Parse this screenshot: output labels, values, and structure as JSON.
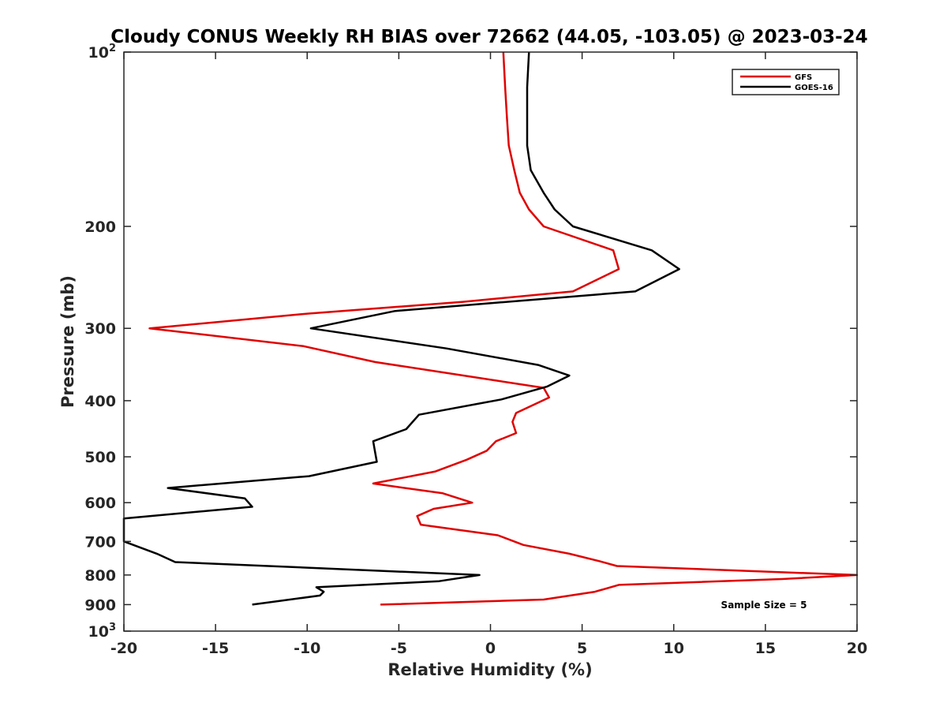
{
  "chart_data": {
    "type": "line",
    "title": "Cloudy CONUS Weekly RH BIAS over 72662 (44.05, -103.05) @ 2023-03-24",
    "xlabel": "Relative Humidity (%)",
    "ylabel": "Pressure (mb)",
    "xlim": [
      -20,
      20
    ],
    "ylim": [
      100,
      1000
    ],
    "y_scale": "log",
    "y_reversed": true,
    "grid": false,
    "legend_position": "top-right",
    "annotation": "Sample Size = 5",
    "x_ticks": [
      {
        "value": -20,
        "label": "-20"
      },
      {
        "value": -15,
        "label": "-15"
      },
      {
        "value": -10,
        "label": "-10"
      },
      {
        "value": -5,
        "label": "-5"
      },
      {
        "value": 0,
        "label": "0"
      },
      {
        "value": 5,
        "label": "5"
      },
      {
        "value": 10,
        "label": "10"
      },
      {
        "value": 15,
        "label": "15"
      },
      {
        "value": 20,
        "label": "20"
      }
    ],
    "y_ticks": [
      {
        "value": 100,
        "base": "10",
        "exp": "2"
      },
      {
        "value": 200,
        "label": "200"
      },
      {
        "value": 300,
        "label": "300"
      },
      {
        "value": 400,
        "label": "400"
      },
      {
        "value": 500,
        "label": "500"
      },
      {
        "value": 600,
        "label": "600"
      },
      {
        "value": 700,
        "label": "700"
      },
      {
        "value": 800,
        "label": "800"
      },
      {
        "value": 900,
        "label": "900"
      },
      {
        "value": 1000,
        "base": "10",
        "exp": "3"
      }
    ],
    "series": [
      {
        "name": "GFS",
        "color": "#e00000",
        "points": [
          [
            0.7,
            100
          ],
          [
            0.8,
            115
          ],
          [
            0.9,
            130
          ],
          [
            1.0,
            145
          ],
          [
            1.3,
            160
          ],
          [
            1.6,
            175
          ],
          [
            2.1,
            187
          ],
          [
            2.9,
            200
          ],
          [
            6.7,
            220
          ],
          [
            7.0,
            237
          ],
          [
            4.5,
            259
          ],
          [
            -1.5,
            270
          ],
          [
            -10.0,
            283
          ],
          [
            -18.6,
            300
          ],
          [
            -10.2,
            322
          ],
          [
            -6.3,
            343
          ],
          [
            -1.2,
            363
          ],
          [
            2.9,
            380
          ],
          [
            3.2,
            395
          ],
          [
            1.4,
            420
          ],
          [
            1.2,
            435
          ],
          [
            1.4,
            455
          ],
          [
            0.3,
            470
          ],
          [
            -0.2,
            488
          ],
          [
            -1.3,
            506
          ],
          [
            -3.0,
            530
          ],
          [
            -6.4,
            556
          ],
          [
            -2.6,
            578
          ],
          [
            -1.0,
            600
          ],
          [
            -3.1,
            615
          ],
          [
            -4.0,
            633
          ],
          [
            -3.8,
            655
          ],
          [
            0.4,
            683
          ],
          [
            1.8,
            710
          ],
          [
            4.3,
            735
          ],
          [
            6.0,
            758
          ],
          [
            6.9,
            772
          ],
          [
            20.0,
            800
          ],
          [
            15.9,
            813
          ],
          [
            7.0,
            832
          ],
          [
            5.7,
            855
          ],
          [
            2.9,
            882
          ],
          [
            -6.0,
            900
          ]
        ]
      },
      {
        "name": "GOES-16",
        "color": "#000000",
        "points": [
          [
            2.1,
            100
          ],
          [
            2.0,
            115
          ],
          [
            2.0,
            130
          ],
          [
            2.0,
            145
          ],
          [
            2.2,
            160
          ],
          [
            2.9,
            175
          ],
          [
            3.5,
            187
          ],
          [
            4.5,
            200
          ],
          [
            8.8,
            220
          ],
          [
            10.3,
            237
          ],
          [
            7.9,
            259
          ],
          [
            -5.2,
            280
          ],
          [
            -9.8,
            300
          ],
          [
            -2.4,
            325
          ],
          [
            2.6,
            347
          ],
          [
            4.3,
            362
          ],
          [
            3.1,
            378
          ],
          [
            0.6,
            398
          ],
          [
            -3.9,
            423
          ],
          [
            -4.6,
            448
          ],
          [
            -6.4,
            470
          ],
          [
            -6.3,
            490
          ],
          [
            -6.2,
            510
          ],
          [
            -9.9,
            540
          ],
          [
            -17.6,
            566
          ],
          [
            -13.4,
            590
          ],
          [
            -13.0,
            610
          ],
          [
            -20.0,
            639
          ],
          [
            -20.0,
            700
          ],
          [
            -18.2,
            735
          ],
          [
            -17.2,
            760
          ],
          [
            -0.6,
            800
          ],
          [
            -2.8,
            820
          ],
          [
            -9.5,
            840
          ],
          [
            -9.1,
            855
          ],
          [
            -9.3,
            868
          ],
          [
            -13.0,
            900
          ]
        ]
      }
    ]
  }
}
